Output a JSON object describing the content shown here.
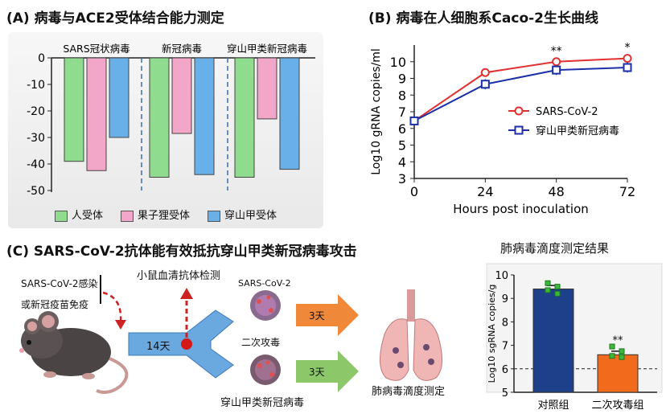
{
  "panel_a": {
    "title": "(A) 病毒与ACE2受体结合能力测定",
    "groups": [
      "SARS冠状病毒",
      "新冠病毒",
      "穿山甲类新冠病毒"
    ],
    "legend": [
      "人受体",
      "果子狸受体",
      "穿山甲受体"
    ],
    "colors": {
      "human": "#8fdc8f",
      "civet": "#f2a6c8",
      "pangolin": "#6ab0e8"
    }
  },
  "panel_b": {
    "title": "(B) 病毒在人细胞系Caco-2生长曲线",
    "legend": [
      "SARS-CoV-2",
      "穿山甲类新冠病毒"
    ],
    "colors": {
      "sars": "#e03030",
      "pangolin": "#1a2fa8"
    },
    "sig": [
      "**",
      "*"
    ]
  },
  "panel_c": {
    "title": "(C) SARS-CoV-2抗体能有效抵抗穿山甲类新冠病毒攻击",
    "infection_label_1": "SARS-CoV-2感染",
    "infection_label_2": "或新冠疫苗免疫",
    "serum_test": "小鼠血清抗体检测",
    "days_14": "14天",
    "virus_top": "SARS-CoV-2",
    "rechallenge": "二次攻毒",
    "days_3_top": "3天",
    "days_3_bottom": "3天",
    "virus_bottom": "穿山甲类新冠病毒",
    "lung_test": "肺病毒滴度测定"
  },
  "panel_d": {
    "title": "肺病毒滴度测定结果",
    "colors": {
      "control": "#1e3f8a",
      "rechallenge": "#f26a1b"
    },
    "sig": "**"
  },
  "chart_data": [
    {
      "type": "bar",
      "title": "(A) 病毒与ACE2受体结合能力测定",
      "categories": [
        "SARS冠状病毒",
        "新冠病毒",
        "穿山甲类新冠病毒"
      ],
      "series": [
        {
          "name": "人受体",
          "values": [
            -39,
            -45,
            -45
          ]
        },
        {
          "name": "果子狸受体",
          "values": [
            -42.5,
            -28.5,
            -23
          ]
        },
        {
          "name": "穿山甲受体",
          "values": [
            -30,
            -44,
            -42
          ]
        }
      ],
      "ylim": [
        -50,
        0
      ],
      "yticks": [
        0,
        -10,
        -20,
        -30,
        -40,
        -50
      ],
      "legend_position": "bottom"
    },
    {
      "type": "line",
      "title": "(B) 病毒在人细胞系Caco-2生长曲线",
      "xlabel": "Hours post inoculation",
      "ylabel": "Log10 gRNA copies/ml",
      "x": [
        0,
        24,
        48,
        72
      ],
      "series": [
        {
          "name": "SARS-CoV-2",
          "values": [
            6.45,
            9.35,
            10.0,
            10.2
          ]
        },
        {
          "name": "穿山甲类新冠病毒",
          "values": [
            6.45,
            8.65,
            9.5,
            9.65
          ]
        }
      ],
      "xlim": [
        0,
        72
      ],
      "ylim": [
        3,
        11
      ],
      "yticks": [
        3,
        4,
        5,
        6,
        7,
        8,
        9,
        10
      ],
      "legend_position": "center-right",
      "annotations": [
        {
          "x": 48,
          "text": "**"
        },
        {
          "x": 72,
          "text": "*"
        }
      ]
    },
    {
      "type": "bar",
      "title": "肺病毒滴度测定结果",
      "ylabel": "Log10 sgRNA copies/g",
      "categories": [
        "对照组",
        "二次攻毒组"
      ],
      "values": [
        9.4,
        6.6
      ],
      "points": [
        [
          9.65,
          9.5,
          9.35,
          9.2
        ],
        [
          6.95,
          6.75,
          6.55,
          6.5
        ]
      ],
      "ylim": [
        5,
        10
      ],
      "yticks": [
        5,
        6,
        7,
        8,
        9,
        10
      ],
      "reference_line": 6,
      "annotations": [
        {
          "category": "二次攻毒组",
          "text": "**"
        }
      ]
    }
  ]
}
